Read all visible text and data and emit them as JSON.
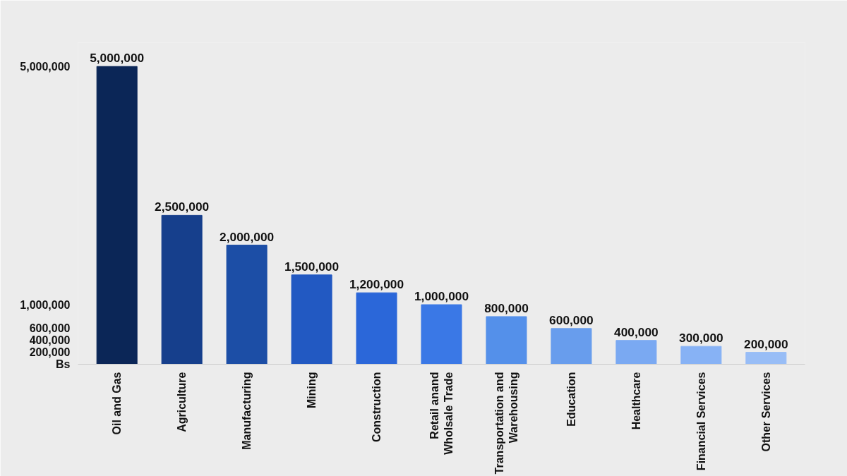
{
  "chart_data": {
    "type": "bar",
    "categories": [
      "Oil and Gas",
      "Agriculture",
      "Manufacturing",
      "Mining",
      "Construction",
      "Retail anand\nWholsale Trade",
      "Transportation and\nWarehousing",
      "Education",
      "Healthcare",
      "Financial Services",
      "Other Services"
    ],
    "values": [
      5000000,
      2500000,
      2000000,
      1500000,
      1200000,
      1000000,
      800000,
      600000,
      400000,
      300000,
      200000
    ],
    "colors": [
      "#0b2657",
      "#163f8c",
      "#1c4ea6",
      "#2259c2",
      "#2b67d9",
      "#3a78e6",
      "#5490ea",
      "#689ded",
      "#7aa9f2",
      "#87b2f5",
      "#98bdf6"
    ],
    "ylim": [
      0,
      5400000
    ],
    "yticks": [
      {
        "value": 0,
        "label": "Bs"
      },
      {
        "value": 200000,
        "label": "200,000"
      },
      {
        "value": 400000,
        "label": "400,000"
      },
      {
        "value": 600000,
        "label": "600,000"
      },
      {
        "value": 1000000,
        "label": "1,000,000"
      },
      {
        "value": 5000000,
        "label": "5,000,000"
      }
    ],
    "value_labels": [
      "5,000,000",
      "2,500,000",
      "2,000,000",
      "1,500,000",
      "1,200,000",
      "1,000,000",
      "800,000",
      "600,000",
      "400,000",
      "300,000",
      "200,000"
    ]
  }
}
